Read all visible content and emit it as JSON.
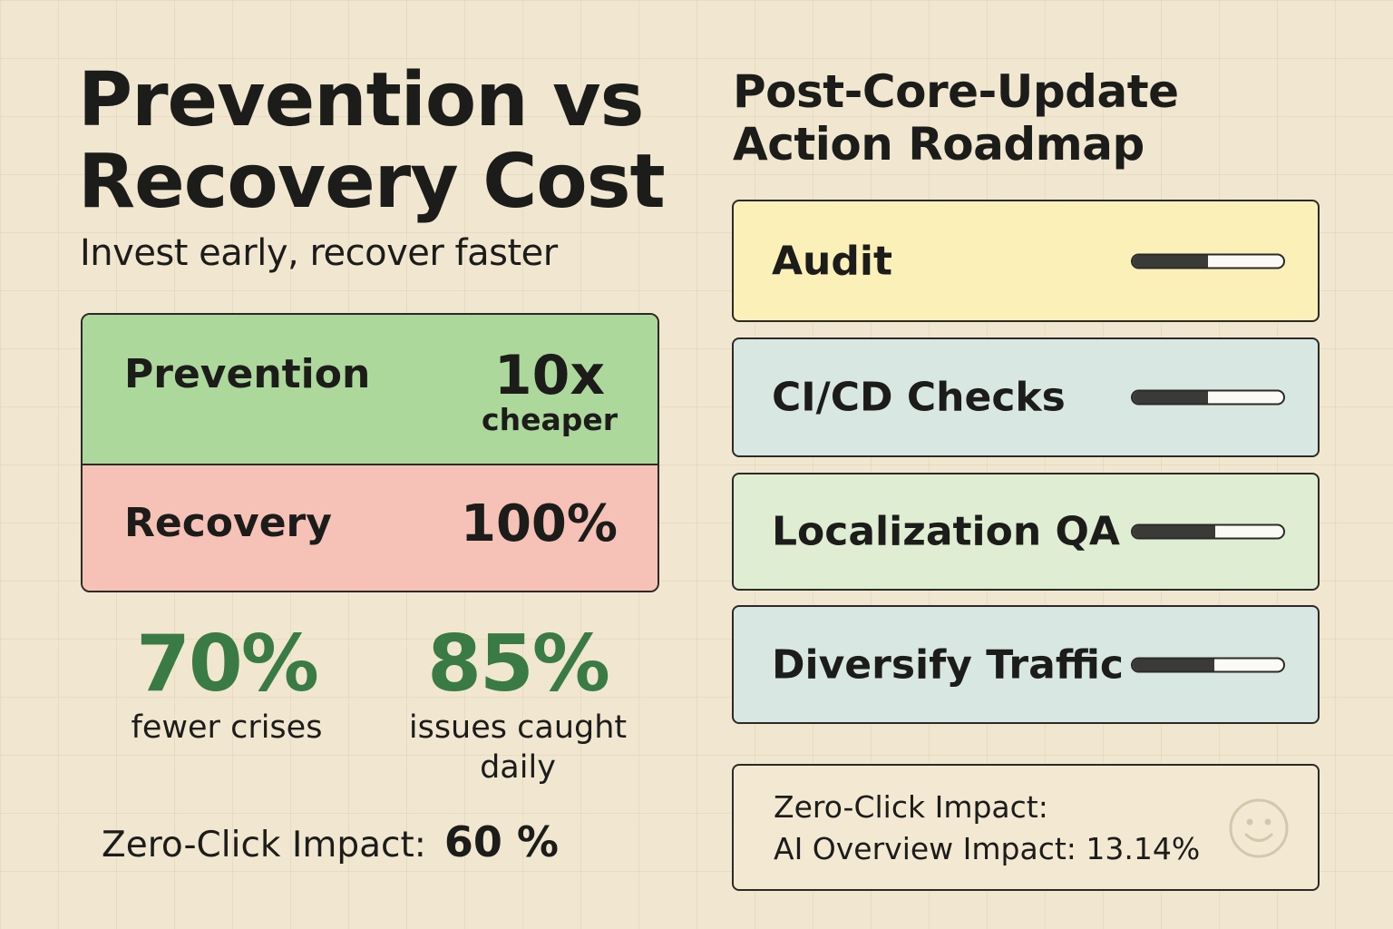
{
  "left": {
    "title_line1": "Prevention vs",
    "title_line2": "Recovery Cost",
    "subtitle": "Invest early, recover faster",
    "prevention": {
      "label": "Prevention",
      "value": "10x",
      "unit": "cheaper",
      "color": "#acd89b"
    },
    "recovery": {
      "label": "Recovery",
      "value": "100%",
      "color": "#f6c2b7"
    },
    "stats": [
      {
        "value": "70%",
        "label": "fewer crises"
      },
      {
        "value": "85%",
        "label_line1": "issues caught",
        "label_line2": "daily"
      }
    ],
    "zero_click": {
      "label": "Zero-Click Impact:",
      "value": "60 %"
    }
  },
  "right": {
    "title_line1": "Post-Core-Update",
    "title_line2": "Action Roadmap",
    "items": [
      {
        "label": "Audit",
        "progress": 0.5,
        "color": "#fbf0b8"
      },
      {
        "label": "CI/CD Checks",
        "progress": 0.5,
        "color": "#d8e7e1"
      },
      {
        "label": "Localization QA",
        "progress": 0.55,
        "color": "#dfeed3"
      },
      {
        "label": "Diversify Traffic",
        "progress": 0.54,
        "color": "#d8e7e1"
      }
    ],
    "impact_box": {
      "line1": "Zero-Click Impact:",
      "line2": "AI Overview Impact: 13.14%",
      "icon": "smiley-icon"
    }
  },
  "colors": {
    "accent_green": "#3a7a44",
    "background": "#f1e6cf"
  }
}
